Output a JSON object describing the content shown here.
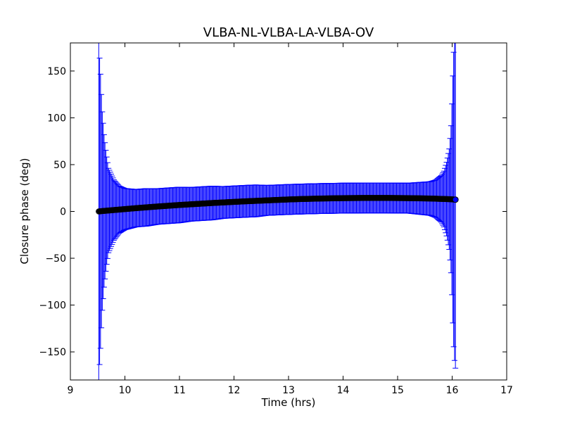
{
  "chart_data": {
    "type": "scatter",
    "title": "VLBA-NL-VLBA-LA-VLBA-OV",
    "xlabel": "Time (hrs)",
    "ylabel": "Closure phase (deg)",
    "xlim": [
      9,
      17
    ],
    "ylim": [
      -180,
      180
    ],
    "x_ticks": [
      9,
      10,
      11,
      12,
      13,
      14,
      15,
      16,
      17
    ],
    "x_tick_labels": [
      "9",
      "10",
      "11",
      "12",
      "13",
      "14",
      "15",
      "16",
      "17"
    ],
    "y_ticks": [
      -150,
      -100,
      -50,
      0,
      50,
      100,
      150
    ],
    "y_tick_labels": [
      "−150",
      "−100",
      "−50",
      "0",
      "50",
      "100",
      "150"
    ],
    "grid": false,
    "legend": false,
    "series": [
      {
        "marker": "circle",
        "color": "#000000",
        "error_color": "#0000ff",
        "x": [
          9.52,
          9.55,
          9.58,
          9.62,
          9.66,
          9.7,
          9.8,
          9.9,
          10.0,
          10.2,
          10.4,
          10.6,
          10.8,
          11.0,
          11.2,
          11.4,
          11.6,
          11.8,
          12.0,
          12.2,
          12.4,
          12.6,
          12.8,
          13.0,
          13.2,
          13.4,
          13.6,
          13.8,
          14.0,
          14.2,
          14.4,
          14.6,
          14.8,
          15.0,
          15.2,
          15.4,
          15.6,
          15.7,
          15.8,
          15.85,
          15.9,
          15.95,
          15.98,
          16.0,
          16.02,
          16.04,
          16.06
        ],
        "y": [
          0.0,
          0.2,
          0.4,
          0.6,
          0.8,
          1.0,
          1.5,
          2.0,
          2.5,
          3.5,
          4.4,
          5.3,
          6.1,
          6.9,
          7.6,
          8.3,
          9.0,
          9.6,
          10.2,
          10.8,
          11.3,
          11.8,
          12.3,
          12.8,
          13.2,
          13.5,
          13.8,
          14.0,
          14.2,
          14.3,
          14.4,
          14.4,
          14.4,
          14.3,
          14.2,
          14.0,
          13.8,
          13.6,
          13.4,
          13.3,
          13.2,
          13.1,
          13.0,
          12.9,
          12.8,
          12.7,
          12.6
        ],
        "yerr": [
          180,
          150,
          110,
          80,
          60,
          45,
          32,
          25,
          22,
          20,
          20,
          19,
          19,
          19,
          18,
          18,
          18,
          17,
          17,
          17,
          17,
          16,
          16,
          16,
          16,
          16,
          16,
          16,
          16,
          16,
          16,
          16,
          16,
          16,
          16,
          17,
          18,
          20,
          25,
          30,
          40,
          55,
          80,
          110,
          150,
          170,
          180
        ]
      }
    ]
  }
}
